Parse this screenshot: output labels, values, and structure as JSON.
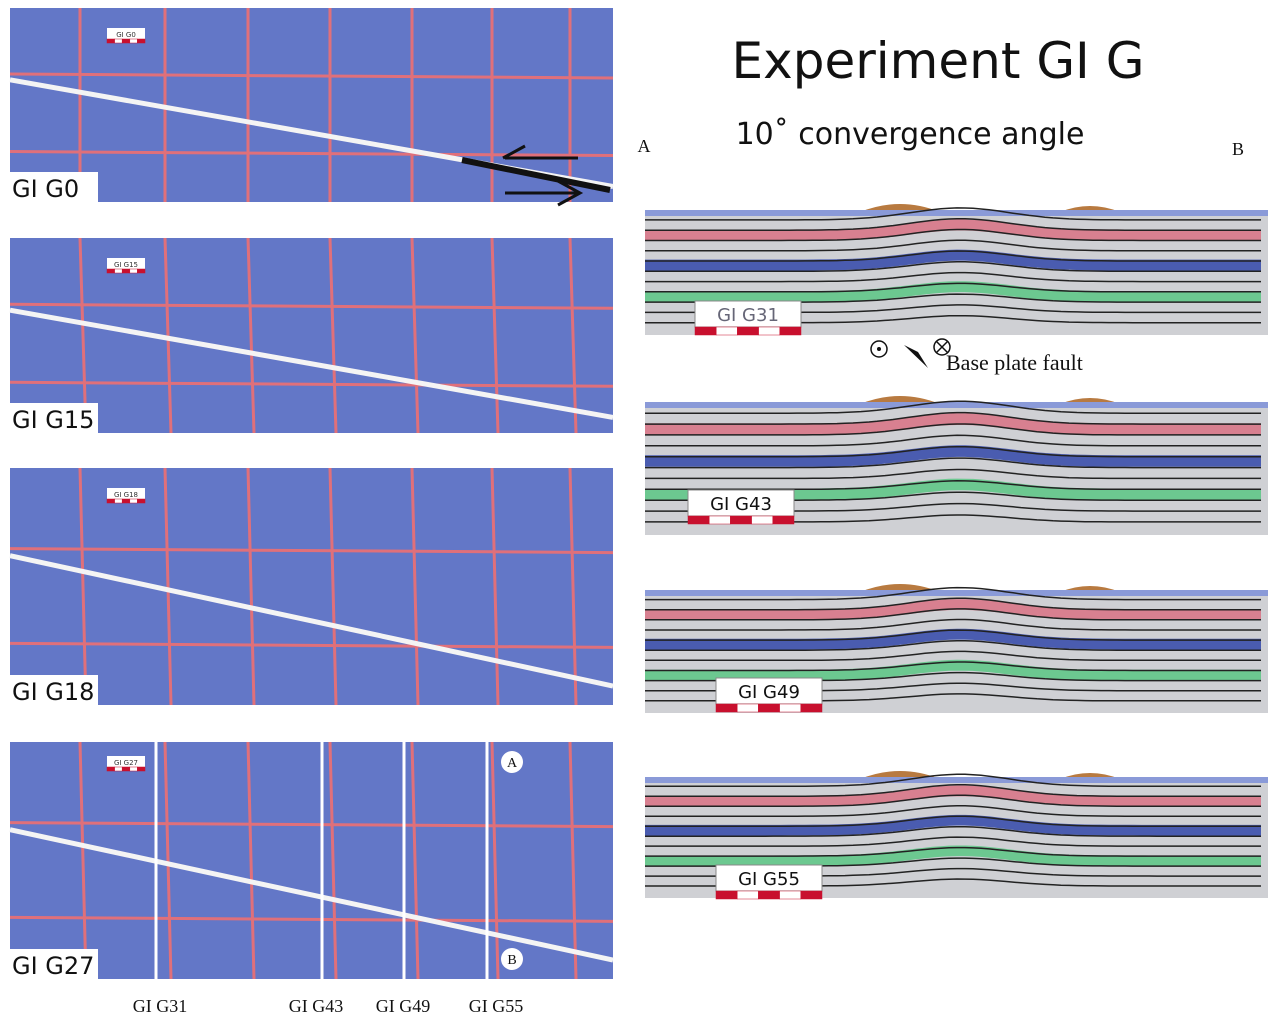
{
  "title": "Experiment GI G",
  "subtitle": "10˚ convergence angle",
  "section_ends": [
    "A",
    "B"
  ],
  "map_views": [
    {
      "label": "GI G0",
      "tag": "GI G0"
    },
    {
      "label": "GI G15",
      "tag": "GI G15"
    },
    {
      "label": "GI G18",
      "tag": "GI G18"
    },
    {
      "label": "GI G27",
      "tag": "GI G27"
    }
  ],
  "map_markers": [
    "A",
    "B"
  ],
  "cut_labels": [
    "GI G31",
    "GI G43",
    "GI G49",
    "GI G55"
  ],
  "cross_sections": [
    {
      "label": "GI G31"
    },
    {
      "label": "GI G43"
    },
    {
      "label": "GI G49"
    },
    {
      "label": "GI G55"
    }
  ],
  "fault_label": "Base plate fault"
}
